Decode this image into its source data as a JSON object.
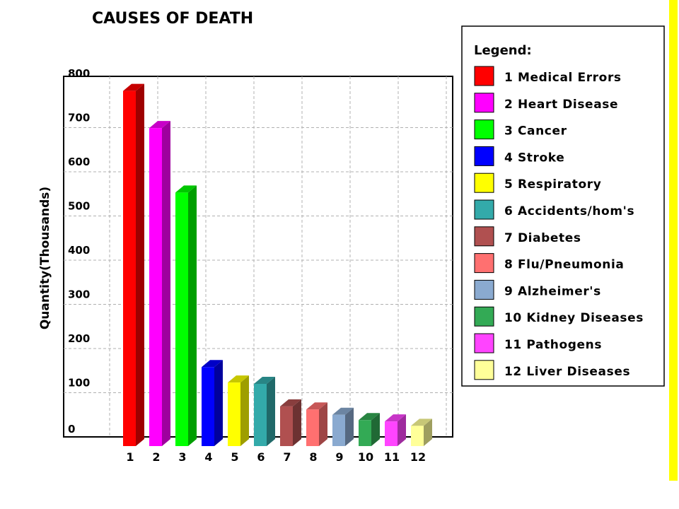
{
  "accent_color": "#ffff00",
  "chart_data": {
    "type": "bar",
    "title": "CAUSES OF DEATH",
    "ylabel": "Quantity(Thousands)",
    "xlabel": "",
    "ylim": [
      0,
      800
    ],
    "yticks": [
      "0",
      "100",
      "200",
      "300",
      "400",
      "500",
      "600",
      "700",
      "800"
    ],
    "grid": true,
    "legend_position": "right",
    "legend_title": "Legend:",
    "categories": [
      "1",
      "2",
      "3",
      "4",
      "5",
      "6",
      "7",
      "8",
      "9",
      "10",
      "11",
      "12"
    ],
    "series": [
      {
        "label": "1 Medical Errors",
        "value": 783,
        "color": "#ff0000"
      },
      {
        "label": "2 Heart Disease",
        "value": 699,
        "color": "#ff00ff"
      },
      {
        "label": "3 Cancer",
        "value": 553,
        "color": "#00ff00"
      },
      {
        "label": "4 Stroke",
        "value": 158,
        "color": "#0000ff"
      },
      {
        "label": "5 Respiratory",
        "value": 123,
        "color": "#ffff00"
      },
      {
        "label": "6 Accidents/hom's",
        "value": 120,
        "color": "#33aaaa"
      },
      {
        "label": "7 Diabetes",
        "value": 69,
        "color": "#b05050"
      },
      {
        "label": "8 Flu/Pneumonia",
        "value": 62,
        "color": "#ff7070"
      },
      {
        "label": "9 Alzheimer's",
        "value": 50,
        "color": "#8aaad0"
      },
      {
        "label": "10 Kidney Diseases",
        "value": 38,
        "color": "#33aa55"
      },
      {
        "label": "11 Pathogens",
        "value": 35,
        "color": "#ff44ff"
      },
      {
        "label": "12 Liver Diseases",
        "value": 25,
        "color": "#ffff99"
      }
    ]
  }
}
